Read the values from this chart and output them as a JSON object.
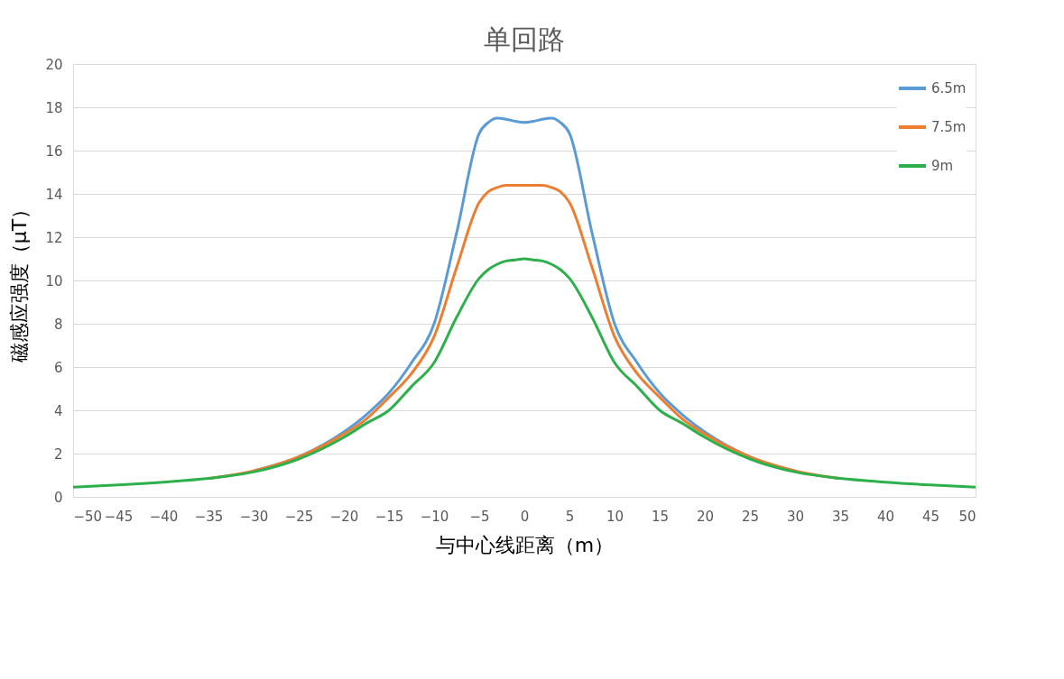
{
  "chart_data": {
    "type": "line",
    "title": "单回路",
    "xlabel": "与中心线距离（m）",
    "ylabel": "磁感应强度（μT）",
    "x": [
      -50,
      -45,
      -40,
      -35,
      -30,
      -25,
      -20,
      -17.5,
      -15,
      -12.5,
      -10,
      -7.5,
      -5,
      -4,
      -3,
      -2,
      -1,
      0,
      1,
      2,
      3,
      4,
      5,
      7.5,
      10,
      12.5,
      15,
      17.5,
      20,
      25,
      30,
      35,
      40,
      45,
      50
    ],
    "series": [
      {
        "name": "6.5m",
        "color": "#5b9bd5",
        "values": [
          null,
          null,
          null,
          null,
          1.2,
          1.85,
          3.0,
          3.8,
          4.8,
          6.2,
          8.0,
          12.2,
          16.8,
          17.3,
          17.5,
          17.45,
          17.35,
          17.3,
          17.35,
          17.45,
          17.5,
          17.3,
          16.8,
          12.2,
          8.0,
          6.2,
          4.8,
          3.8,
          3.0,
          1.85,
          1.2,
          null,
          null,
          null,
          null
        ]
      },
      {
        "name": "7.5m",
        "color": "#ed7d31",
        "values": [
          null,
          null,
          null,
          0.85,
          1.2,
          1.85,
          2.9,
          3.6,
          4.6,
          5.7,
          7.4,
          10.6,
          13.6,
          14.1,
          14.3,
          14.4,
          14.4,
          14.4,
          14.4,
          14.4,
          14.3,
          14.1,
          13.6,
          10.6,
          7.4,
          5.7,
          4.6,
          3.6,
          2.9,
          1.85,
          1.2,
          0.85,
          null,
          null,
          null
        ]
      },
      {
        "name": "9m",
        "color": "#2db04b",
        "values": [
          0.45,
          0.55,
          0.68,
          0.85,
          1.15,
          1.75,
          2.75,
          3.4,
          4.0,
          5.1,
          6.2,
          8.3,
          10.1,
          10.5,
          10.75,
          10.9,
          10.95,
          11.0,
          10.95,
          10.9,
          10.75,
          10.5,
          10.1,
          8.3,
          6.2,
          5.1,
          4.0,
          3.4,
          2.75,
          1.75,
          1.15,
          0.85,
          0.68,
          0.55,
          0.45
        ]
      }
    ],
    "xlim": [
      -50,
      50
    ],
    "xticks": [
      -50,
      -45,
      -40,
      -35,
      -30,
      -25,
      -20,
      -15,
      -10,
      -5,
      0,
      5,
      10,
      15,
      20,
      25,
      30,
      35,
      40,
      45,
      50
    ],
    "ylim": [
      0,
      20
    ],
    "yticks": [
      0,
      2,
      4,
      6,
      8,
      10,
      12,
      14,
      16,
      18,
      20
    ],
    "grid": "y",
    "legend": "top right",
    "marker": "none",
    "line_style": "solid"
  }
}
